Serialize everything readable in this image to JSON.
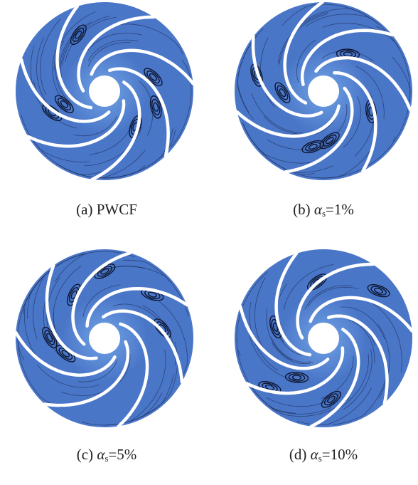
{
  "panels": [
    {
      "label": "(a)",
      "caption": "PWCF"
    },
    {
      "label": "(b)",
      "symbol": "α",
      "subscript": "s",
      "caption": "=1%"
    },
    {
      "label": "(c)",
      "symbol": "α",
      "subscript": "s",
      "caption": "=5%"
    },
    {
      "label": "(d)",
      "symbol": "α",
      "subscript": "s",
      "caption": "=10%"
    }
  ]
}
